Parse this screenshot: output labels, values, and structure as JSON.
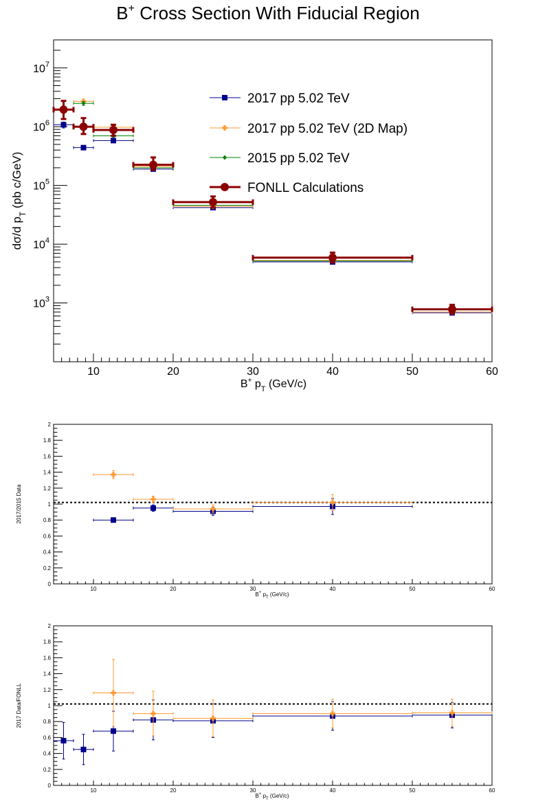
{
  "colors": {
    "pp2017": "#00008b",
    "map2d": "#ff9933",
    "pp2015": "#008000",
    "fonll": "#8b0000",
    "reference": "#000000"
  },
  "chart_data": [
    {
      "type": "scatter",
      "title": "B+ Cross Section With Fiducial Region",
      "xlabel": "B+ pT (GeV/c)",
      "ylabel": "dσ/d pT (pb c/GeV)",
      "xlim": [
        5,
        60
      ],
      "ylim": [
        100,
        30000000
      ],
      "log_y": true,
      "grid": false,
      "legend_position": "top-right",
      "x_ticks": [
        10,
        20,
        30,
        40,
        50,
        60
      ],
      "y_ticks": [
        "10^3",
        "10^4",
        "10^5",
        "10^6",
        "10^7"
      ],
      "series": [
        {
          "name": "2017 pp 5.02 TeV",
          "color_key": "pp2017",
          "marker": "square",
          "points": [
            {
              "x": 6.25,
              "xlo": 5,
              "xhi": 7.5,
              "y": 1080000,
              "ylo": 950000,
              "yhi": 1200000
            },
            {
              "x": 8.75,
              "xlo": 7.5,
              "xhi": 10,
              "y": 440000,
              "ylo": 410000,
              "yhi": 470000
            },
            {
              "x": 12.5,
              "xlo": 10,
              "xhi": 15,
              "y": 580000,
              "ylo": 540000,
              "yhi": 620000
            },
            {
              "x": 17.5,
              "xlo": 15,
              "xhi": 20,
              "y": 190000,
              "ylo": 180000,
              "yhi": 200000
            },
            {
              "x": 25,
              "xlo": 20,
              "xhi": 30,
              "y": 42000,
              "ylo": 40000,
              "yhi": 44000
            },
            {
              "x": 40,
              "xlo": 30,
              "xhi": 50,
              "y": 5000,
              "ylo": 4700,
              "yhi": 5300
            },
            {
              "x": 55,
              "xlo": 50,
              "xhi": 60,
              "y": 680,
              "ylo": 630,
              "yhi": 730
            }
          ]
        },
        {
          "name": "2017 pp 5.02 TeV (2D Map)",
          "color_key": "map2d",
          "marker": "cross",
          "points": [
            {
              "x": 8.75,
              "xlo": 7.5,
              "xhi": 10,
              "y": 2700000,
              "ylo": 2500000,
              "yhi": 2950000
            },
            {
              "x": 12.5,
              "xlo": 10,
              "xhi": 15,
              "y": 980000,
              "ylo": 920000,
              "yhi": 1040000
            },
            {
              "x": 17.5,
              "xlo": 15,
              "xhi": 20,
              "y": 210000,
              "ylo": 198000,
              "yhi": 222000
            },
            {
              "x": 25,
              "xlo": 20,
              "xhi": 30,
              "y": 44000,
              "ylo": 41500,
              "yhi": 46500
            },
            {
              "x": 40,
              "xlo": 30,
              "xhi": 50,
              "y": 5300,
              "ylo": 5000,
              "yhi": 5600
            },
            {
              "x": 55,
              "xlo": 50,
              "xhi": 60,
              "y": 700,
              "ylo": 650,
              "yhi": 750
            }
          ]
        },
        {
          "name": "2015 pp 5.02 TeV",
          "color_key": "pp2015",
          "marker": "star",
          "points": [
            {
              "x": 8.75,
              "xlo": 7.5,
              "xhi": 10,
              "y": 2500000,
              "ylo": 2300000,
              "yhi": 2700000
            },
            {
              "x": 12.5,
              "xlo": 10,
              "xhi": 15,
              "y": 700000,
              "ylo": 660000,
              "yhi": 740000
            },
            {
              "x": 17.5,
              "xlo": 15,
              "xhi": 20,
              "y": 200000,
              "ylo": 190000,
              "yhi": 210000
            },
            {
              "x": 25,
              "xlo": 20,
              "xhi": 30,
              "y": 46000,
              "ylo": 43500,
              "yhi": 48500
            },
            {
              "x": 40,
              "xlo": 30,
              "xhi": 50,
              "y": 5200,
              "ylo": 4900,
              "yhi": 5500
            }
          ]
        },
        {
          "name": "FONLL Calculations",
          "color_key": "fonll",
          "marker": "circle",
          "thick": true,
          "points": [
            {
              "x": 6.25,
              "xlo": 5,
              "xhi": 7.5,
              "y": 1950000,
              "ylo": 1350000,
              "yhi": 2750000
            },
            {
              "x": 8.75,
              "xlo": 7.5,
              "xhi": 10,
              "y": 1000000,
              "ylo": 750000,
              "yhi": 1400000
            },
            {
              "x": 12.5,
              "xlo": 10,
              "xhi": 15,
              "y": 880000,
              "ylo": 700000,
              "yhi": 1080000
            },
            {
              "x": 17.5,
              "xlo": 15,
              "xhi": 20,
              "y": 225000,
              "ylo": 185000,
              "yhi": 300000
            },
            {
              "x": 25,
              "xlo": 20,
              "xhi": 30,
              "y": 52000,
              "ylo": 42000,
              "yhi": 65000
            },
            {
              "x": 40,
              "xlo": 30,
              "xhi": 50,
              "y": 5900,
              "ylo": 4900,
              "yhi": 7200
            },
            {
              "x": 55,
              "xlo": 50,
              "xhi": 60,
              "y": 780,
              "ylo": 660,
              "yhi": 930
            }
          ]
        }
      ]
    },
    {
      "type": "scatter",
      "title": "",
      "xlabel": "B+ pT (GeV/c)",
      "ylabel": "2017/2015 Data",
      "xlim": [
        5,
        60
      ],
      "ylim": [
        0,
        2
      ],
      "grid": false,
      "reference_line": 1.02,
      "x_ticks": [
        10,
        20,
        30,
        40,
        50,
        60
      ],
      "y_ticks": [
        "0",
        "0.2",
        "0.4",
        "0.6",
        "0.8",
        "1",
        "1.2",
        "1.4",
        "1.6",
        "1.8",
        "2"
      ],
      "series": [
        {
          "color_key": "pp2017",
          "marker": "square",
          "points": [
            {
              "x": 12.5,
              "xlo": 10,
              "xhi": 15,
              "y": 0.8,
              "ylo": 0.79,
              "yhi": 0.81
            },
            {
              "x": 17.5,
              "xlo": 15,
              "xhi": 20,
              "y": 0.95,
              "ylo": 0.91,
              "yhi": 0.99
            },
            {
              "x": 25,
              "xlo": 20,
              "xhi": 30,
              "y": 0.91,
              "ylo": 0.86,
              "yhi": 0.96
            },
            {
              "x": 40,
              "xlo": 30,
              "xhi": 50,
              "y": 0.97,
              "ylo": 0.87,
              "yhi": 1.07
            }
          ]
        },
        {
          "color_key": "map2d",
          "marker": "cross",
          "points": [
            {
              "x": 12.5,
              "xlo": 10,
              "xhi": 15,
              "y": 1.37,
              "ylo": 1.32,
              "yhi": 1.42
            },
            {
              "x": 17.5,
              "xlo": 15,
              "xhi": 20,
              "y": 1.06,
              "ylo": 1.02,
              "yhi": 1.1
            },
            {
              "x": 25,
              "xlo": 20,
              "xhi": 30,
              "y": 0.94,
              "ylo": 0.89,
              "yhi": 0.99
            },
            {
              "x": 40,
              "xlo": 30,
              "xhi": 50,
              "y": 1.02,
              "ylo": 0.92,
              "yhi": 1.12
            }
          ]
        }
      ]
    },
    {
      "type": "scatter",
      "title": "",
      "xlabel": "B+ pT (GeV/c)",
      "ylabel": "2017 Data/FONLL",
      "xlim": [
        5,
        60
      ],
      "ylim": [
        0,
        2
      ],
      "grid": false,
      "reference_line": 1.02,
      "x_ticks": [
        10,
        20,
        30,
        40,
        50,
        60
      ],
      "y_ticks": [
        "0",
        "0.2",
        "0.4",
        "0.6",
        "0.8",
        "1",
        "1.2",
        "1.4",
        "1.6",
        "1.8",
        "2"
      ],
      "series": [
        {
          "color_key": "pp2017",
          "marker": "square",
          "points": [
            {
              "x": 6.25,
              "xlo": 5,
              "xhi": 7.5,
              "y": 0.56,
              "ylo": 0.33,
              "yhi": 0.79
            },
            {
              "x": 8.75,
              "xlo": 7.5,
              "xhi": 10,
              "y": 0.45,
              "ylo": 0.26,
              "yhi": 0.64
            },
            {
              "x": 12.5,
              "xlo": 10,
              "xhi": 15,
              "y": 0.68,
              "ylo": 0.43,
              "yhi": 0.93
            },
            {
              "x": 17.5,
              "xlo": 15,
              "xhi": 20,
              "y": 0.82,
              "ylo": 0.57,
              "yhi": 1.07
            },
            {
              "x": 25,
              "xlo": 20,
              "xhi": 30,
              "y": 0.81,
              "ylo": 0.6,
              "yhi": 1.02
            },
            {
              "x": 40,
              "xlo": 30,
              "xhi": 50,
              "y": 0.87,
              "ylo": 0.69,
              "yhi": 1.05
            },
            {
              "x": 55,
              "xlo": 50,
              "xhi": 60,
              "y": 0.88,
              "ylo": 0.72,
              "yhi": 1.04
            }
          ]
        },
        {
          "color_key": "map2d",
          "marker": "cross",
          "points": [
            {
              "x": 12.5,
              "xlo": 10,
              "xhi": 15,
              "y": 1.16,
              "ylo": 0.74,
              "yhi": 1.58
            },
            {
              "x": 17.5,
              "xlo": 15,
              "xhi": 20,
              "y": 0.9,
              "ylo": 0.62,
              "yhi": 1.18
            },
            {
              "x": 25,
              "xlo": 20,
              "xhi": 30,
              "y": 0.84,
              "ylo": 0.61,
              "yhi": 1.07
            },
            {
              "x": 40,
              "xlo": 30,
              "xhi": 50,
              "y": 0.9,
              "ylo": 0.72,
              "yhi": 1.08
            },
            {
              "x": 55,
              "xlo": 50,
              "xhi": 60,
              "y": 0.91,
              "ylo": 0.74,
              "yhi": 1.08
            }
          ]
        }
      ]
    }
  ]
}
